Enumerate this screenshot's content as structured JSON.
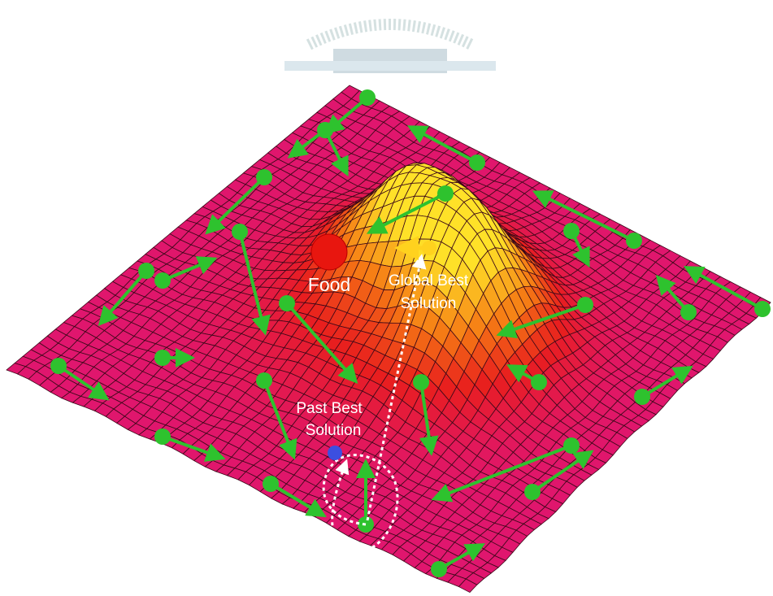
{
  "labels": {
    "food": "Food",
    "global_best": [
      "Global Best",
      "Solution"
    ],
    "past_best": [
      "Past Best",
      "Solution"
    ]
  }
}
